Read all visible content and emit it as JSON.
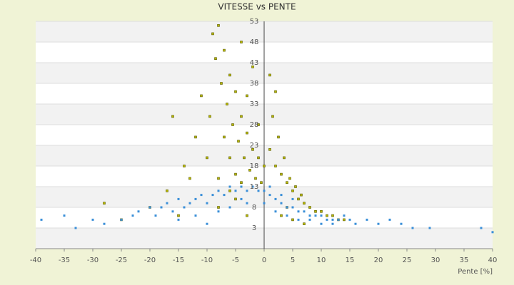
{
  "chart_data": {
    "type": "scatter",
    "title": "VITESSE vs PENTE",
    "x_label": "Pente [%]",
    "xlim": [
      -40,
      40
    ],
    "xticks": [
      -40,
      -35,
      -30,
      -25,
      -20,
      -15,
      -10,
      -5,
      0,
      5,
      10,
      15,
      20,
      25,
      30,
      35,
      40
    ],
    "ylim": [
      -2,
      53
    ],
    "yticks": [
      3,
      8,
      13,
      18,
      23,
      28,
      33,
      38,
      43,
      48,
      53
    ],
    "grid": true,
    "series": [
      {
        "color": "#b8b800",
        "x": [
          -9,
          -8,
          -7,
          -6,
          -5,
          -4,
          -3,
          -2,
          -1,
          0,
          -8.5,
          -7.5,
          -6.5,
          -5.5,
          -4.5,
          -3.5,
          -2.5,
          -1.5,
          -0.5,
          -9.5,
          -7,
          -6,
          -5,
          -4,
          -3,
          -2,
          -1,
          -8,
          -6,
          -4,
          1,
          2,
          3,
          4,
          5,
          6,
          7,
          8,
          9,
          10,
          11,
          12,
          13,
          14,
          1.5,
          2.5,
          3.5,
          4.5,
          5.5,
          6.5,
          -12,
          -14,
          -16,
          -11,
          -13,
          -20,
          -25,
          -28,
          -17,
          -15,
          3,
          5,
          7,
          2,
          4,
          1,
          -10,
          -8,
          -5,
          -3
        ],
        "values": [
          50,
          52,
          46,
          40,
          36,
          30,
          26,
          22,
          20,
          18,
          44,
          38,
          33,
          28,
          24,
          20,
          17,
          15,
          14,
          30,
          25,
          20,
          16,
          14,
          35,
          42,
          28,
          15,
          12,
          48,
          22,
          18,
          16,
          14,
          12,
          10,
          9,
          8,
          7,
          7,
          6,
          6,
          5,
          5,
          30,
          25,
          20,
          15,
          13,
          11,
          25,
          18,
          30,
          35,
          15,
          8,
          5,
          9,
          12,
          6,
          6,
          5,
          4,
          36,
          8,
          40,
          20,
          8,
          10,
          6
        ]
      },
      {
        "color": "#3a8fd8",
        "x": [
          -39,
          -35,
          -33,
          -30,
          -28,
          -25,
          -23,
          -22,
          -20,
          -19,
          -18,
          -17,
          -16,
          -15,
          -14,
          -13,
          -12,
          -11,
          -10,
          -9,
          -8,
          -7,
          -6,
          -5,
          -4,
          -3,
          -2,
          -1,
          0,
          1,
          2,
          3,
          4,
          5,
          6,
          7,
          8,
          9,
          10,
          11,
          12,
          13,
          14,
          15,
          16,
          18,
          20,
          22,
          24,
          26,
          29,
          38,
          40,
          -15,
          -10,
          -6,
          -3,
          0,
          2,
          4,
          6,
          8,
          10,
          12,
          -12,
          -8,
          -4,
          1,
          3,
          5
        ],
        "values": [
          5,
          6,
          3,
          5,
          4,
          5,
          6,
          7,
          8,
          6,
          8,
          9,
          7,
          10,
          8,
          9,
          10,
          11,
          9,
          11,
          12,
          11,
          13,
          12,
          13,
          12,
          13,
          12,
          12,
          11,
          10,
          9,
          8,
          8,
          7,
          7,
          6,
          6,
          6,
          5,
          5,
          5,
          6,
          5,
          4,
          5,
          4,
          5,
          4,
          3,
          3,
          3,
          2,
          5,
          4,
          8,
          9,
          9,
          7,
          6,
          5,
          5,
          4,
          4,
          6,
          7,
          10,
          13,
          11,
          10
        ]
      }
    ]
  }
}
